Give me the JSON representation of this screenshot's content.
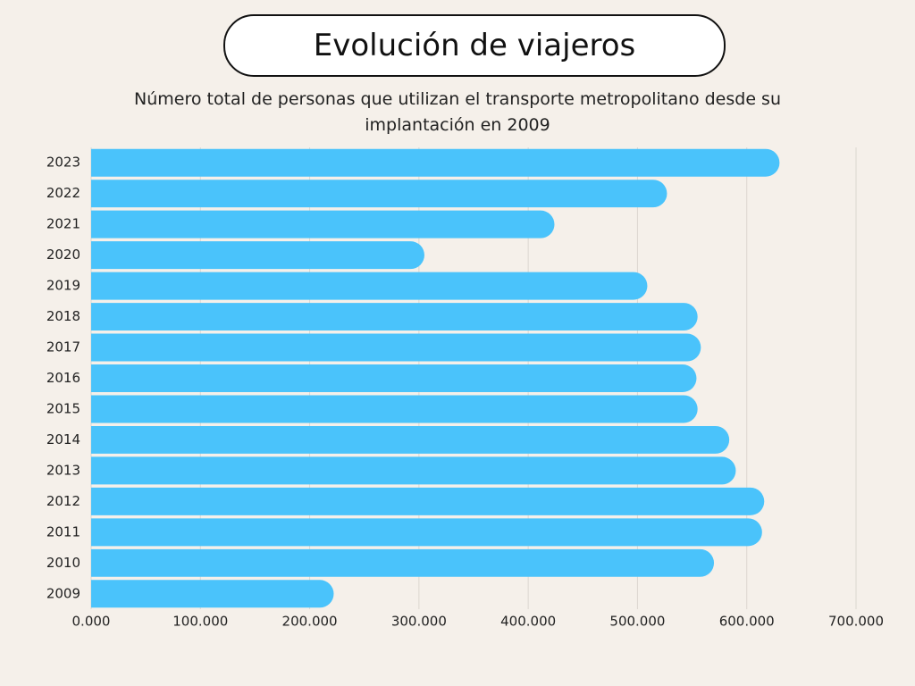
{
  "chart_data": {
    "type": "hbar",
    "title": "Evolución de viajeros",
    "subtitle": "Número total de personas que utilizan el transporte metropolitano desde su implantación en 2009",
    "categories": [
      "2023",
      "2022",
      "2021",
      "2020",
      "2019",
      "2018",
      "2017",
      "2016",
      "2015",
      "2014",
      "2013",
      "2012",
      "2011",
      "2010",
      "2009"
    ],
    "values": [
      630000,
      527000,
      424000,
      305000,
      509000,
      555000,
      558000,
      554000,
      555000,
      584000,
      590000,
      616000,
      614000,
      570000,
      222000
    ],
    "color": "#4ac3fb",
    "xlim": [
      0,
      700000
    ],
    "xticks": [
      {
        "value": 0,
        "label": "0.000"
      },
      {
        "value": 100000,
        "label": "100.000"
      },
      {
        "value": 200000,
        "label": "200.000"
      },
      {
        "value": 300000,
        "label": "300.000"
      },
      {
        "value": 400000,
        "label": "400.000"
      },
      {
        "value": 500000,
        "label": "500.000"
      },
      {
        "value": 600000,
        "label": "600.000"
      },
      {
        "value": 700000,
        "label": "700.000"
      }
    ],
    "grid": true
  }
}
